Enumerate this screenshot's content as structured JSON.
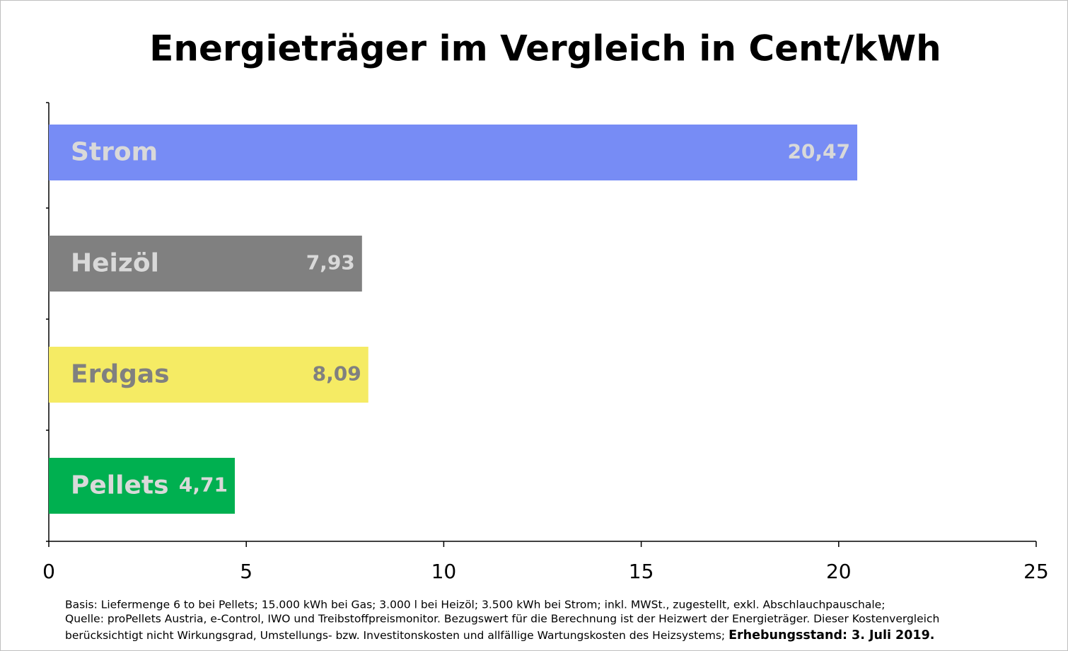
{
  "chart_data": {
    "type": "hbar",
    "title": "Energieträger im Vergleich in Cent/kWh",
    "categories": [
      "Strom",
      "Heizöl",
      "Erdgas",
      "Pellets"
    ],
    "values": [
      20.47,
      7.93,
      8.09,
      4.71
    ],
    "value_labels": [
      "20,47",
      "7,93",
      "8,09",
      "4,71"
    ],
    "colors": [
      "#778cf5",
      "#808080",
      "#f5eb64",
      "#00b050"
    ],
    "label_colors": [
      "#d9d9d9",
      "#d9d9d9",
      "#808080",
      "#d9d9d9"
    ],
    "xlim": [
      0,
      25
    ],
    "xticks": [
      0,
      5,
      10,
      15,
      20,
      25
    ],
    "grid": false,
    "notes": [
      "Basis: Liefermenge 6 to bei Pellets; 15.000 kWh bei Gas; 3.000 l bei Heizöl; 3.500 kWh bei Strom; inkl. MWSt., zugestellt, exkl. Abschlauchpauschale;",
      "Quelle: proPellets Austria, e-Control, IWO und Treibstoffpreismonitor. Bezugswert für die Berechnung ist der Heizwert der Energieträger. Dieser Kostenvergleich",
      "berücksichtigt nicht Wirkungsgrad, Umstellungs- bzw. Investitonskosten und allfällige Wartungskosten des Heizsystems;"
    ],
    "note_emphasis": "Erhebungsstand: 3. Juli 2019."
  }
}
